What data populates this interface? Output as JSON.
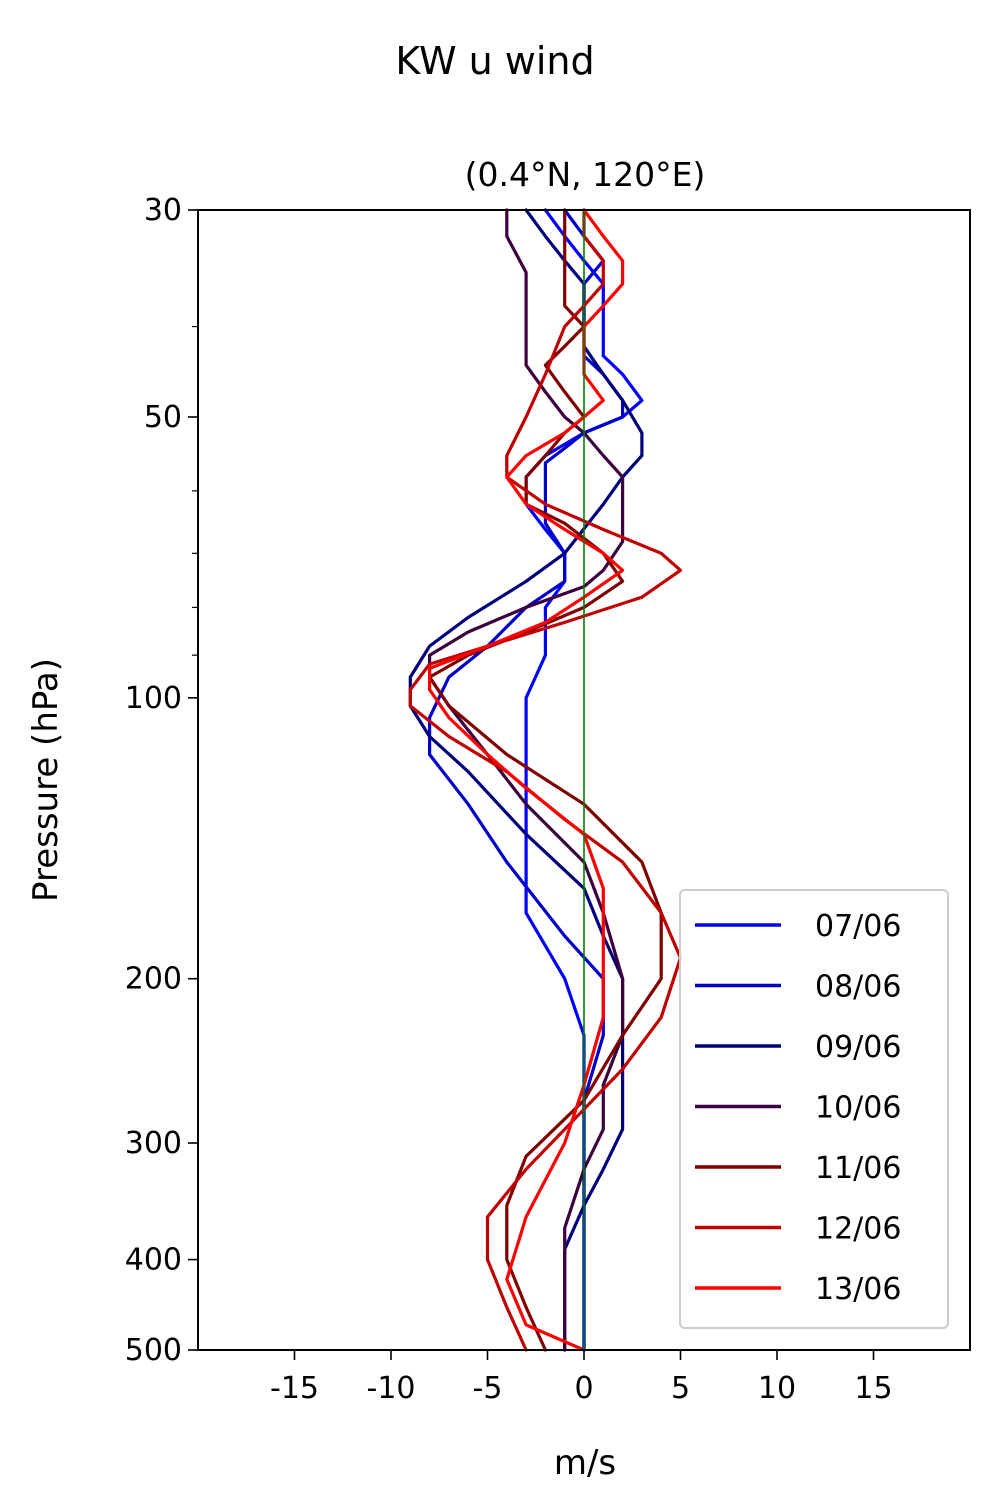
{
  "chart_data": {
    "type": "line",
    "title": "KW u wind",
    "subtitle": "(0.4°N, 120°E)",
    "xlabel": "m/s",
    "ylabel": "Pressure (hPa)",
    "xlim": [
      -20,
      20
    ],
    "ylim": [
      500,
      30
    ],
    "y_scale": "log",
    "x_ticks": [
      -15,
      -10,
      -5,
      0,
      5,
      10,
      15
    ],
    "x_tick_labels": [
      "-15",
      "-10",
      "-5",
      "0",
      "5",
      "10",
      "15"
    ],
    "y_ticks": [
      30,
      50,
      100,
      200,
      300,
      400,
      500
    ],
    "y_tick_labels": [
      "30",
      "50",
      "100",
      "200",
      "300",
      "400",
      "500"
    ],
    "y_minor_ticks": [
      40,
      60,
      70,
      80,
      90
    ],
    "grid": false,
    "legend_position": "lower-right",
    "reference_line": {
      "x": 0,
      "color": "#008000"
    },
    "series": [
      {
        "name": "07/06",
        "color": "#0000ff",
        "points": [
          [
            -2,
            30
          ],
          [
            -1,
            32
          ],
          [
            0,
            34
          ],
          [
            1,
            36
          ],
          [
            1,
            38
          ],
          [
            1,
            40
          ],
          [
            1,
            43
          ],
          [
            2,
            45
          ],
          [
            3,
            48
          ],
          [
            2,
            50
          ],
          [
            0,
            52
          ],
          [
            -2,
            55
          ],
          [
            -3,
            58
          ],
          [
            -3,
            62
          ],
          [
            -2,
            66
          ],
          [
            -1,
            70
          ],
          [
            -1,
            75
          ],
          [
            -2,
            80
          ],
          [
            -2,
            90
          ],
          [
            -3,
            100
          ],
          [
            -3,
            120
          ],
          [
            -3,
            150
          ],
          [
            -3,
            170
          ],
          [
            -1,
            200
          ],
          [
            0,
            230
          ],
          [
            0,
            270
          ],
          [
            0,
            330
          ],
          [
            0,
            400
          ],
          [
            0,
            460
          ],
          [
            0,
            500
          ]
        ]
      },
      {
        "name": "08/06",
        "color": "#0000c8",
        "points": [
          [
            -1,
            30
          ],
          [
            0,
            32
          ],
          [
            1,
            34
          ],
          [
            0,
            36
          ],
          [
            0,
            38
          ],
          [
            0,
            40
          ],
          [
            0,
            43
          ],
          [
            1,
            45
          ],
          [
            2,
            48
          ],
          [
            2,
            50
          ],
          [
            0,
            52
          ],
          [
            -1,
            54
          ],
          [
            -2,
            56
          ],
          [
            -2,
            58
          ],
          [
            -2,
            60
          ],
          [
            -2,
            65
          ],
          [
            -1,
            70
          ],
          [
            -1,
            75
          ],
          [
            -3,
            80
          ],
          [
            -5,
            88
          ],
          [
            -7,
            95
          ],
          [
            -8,
            105
          ],
          [
            -8,
            115
          ],
          [
            -6,
            130
          ],
          [
            -4,
            150
          ],
          [
            -1,
            180
          ],
          [
            1,
            200
          ],
          [
            1,
            230
          ],
          [
            0,
            270
          ],
          [
            0,
            330
          ],
          [
            0,
            400
          ],
          [
            0,
            460
          ],
          [
            0,
            500
          ]
        ]
      },
      {
        "name": "09/06",
        "color": "#00007a",
        "points": [
          [
            -3,
            30
          ],
          [
            -2,
            32
          ],
          [
            -1,
            34
          ],
          [
            0,
            36
          ],
          [
            0,
            38
          ],
          [
            0,
            40
          ],
          [
            0,
            42
          ],
          [
            1,
            45
          ],
          [
            2,
            48
          ],
          [
            3,
            52
          ],
          [
            3,
            55
          ],
          [
            2,
            58
          ],
          [
            1,
            62
          ],
          [
            -1,
            70
          ],
          [
            -3,
            75
          ],
          [
            -6,
            82
          ],
          [
            -8,
            88
          ],
          [
            -9,
            95
          ],
          [
            -9,
            102
          ],
          [
            -8,
            110
          ],
          [
            -6,
            120
          ],
          [
            -3,
            140
          ],
          [
            0,
            160
          ],
          [
            1,
            180
          ],
          [
            2,
            200
          ],
          [
            2,
            230
          ],
          [
            2,
            260
          ],
          [
            2,
            290
          ],
          [
            1,
            320
          ],
          [
            0,
            350
          ],
          [
            -1,
            390
          ],
          [
            -1,
            440
          ],
          [
            -1,
            500
          ]
        ]
      },
      {
        "name": "10/06",
        "color": "#3c0040",
        "points": [
          [
            -4,
            30
          ],
          [
            -4,
            32
          ],
          [
            -3,
            35
          ],
          [
            -3,
            38
          ],
          [
            -3,
            42
          ],
          [
            -3,
            44
          ],
          [
            -2,
            47
          ],
          [
            -1,
            50
          ],
          [
            0,
            52
          ],
          [
            1,
            55
          ],
          [
            2,
            58
          ],
          [
            2,
            63
          ],
          [
            2,
            68
          ],
          [
            1,
            73
          ],
          [
            0,
            76
          ],
          [
            -3,
            80
          ],
          [
            -6,
            85
          ],
          [
            -8,
            90
          ],
          [
            -8,
            95
          ],
          [
            -7,
            102
          ],
          [
            -5,
            115
          ],
          [
            -3,
            130
          ],
          [
            0,
            150
          ],
          [
            1,
            170
          ],
          [
            2,
            200
          ],
          [
            2,
            230
          ],
          [
            1,
            260
          ],
          [
            1,
            290
          ],
          [
            0,
            320
          ],
          [
            -1,
            370
          ],
          [
            -1,
            420
          ],
          [
            -1,
            460
          ],
          [
            -1,
            500
          ]
        ]
      },
      {
        "name": "11/06",
        "color": "#800000",
        "points": [
          [
            -1,
            30
          ],
          [
            -1,
            32
          ],
          [
            -1,
            35
          ],
          [
            -1,
            38
          ],
          [
            0,
            40
          ],
          [
            -1,
            42
          ],
          [
            -2,
            44
          ],
          [
            -1,
            47
          ],
          [
            0,
            50
          ],
          [
            -1,
            52
          ],
          [
            -2,
            55
          ],
          [
            -3,
            58
          ],
          [
            -3,
            62
          ],
          [
            -1,
            65
          ],
          [
            1,
            70
          ],
          [
            2,
            75
          ],
          [
            0,
            80
          ],
          [
            -3,
            85
          ],
          [
            -6,
            90
          ],
          [
            -8,
            95
          ],
          [
            -7,
            102
          ],
          [
            -4,
            115
          ],
          [
            0,
            130
          ],
          [
            3,
            150
          ],
          [
            4,
            170
          ],
          [
            4,
            200
          ],
          [
            2,
            230
          ],
          [
            0,
            270
          ],
          [
            -3,
            310
          ],
          [
            -4,
            350
          ],
          [
            -4,
            400
          ],
          [
            -3,
            450
          ],
          [
            -2,
            500
          ]
        ]
      },
      {
        "name": "12/06",
        "color": "#c00000",
        "points": [
          [
            0,
            30
          ],
          [
            0,
            32
          ],
          [
            1,
            34
          ],
          [
            1,
            36
          ],
          [
            0,
            38
          ],
          [
            -1,
            40
          ],
          [
            -2,
            45
          ],
          [
            -3,
            50
          ],
          [
            -4,
            55
          ],
          [
            -4,
            58
          ],
          [
            -2,
            62
          ],
          [
            1,
            66
          ],
          [
            4,
            70
          ],
          [
            5,
            73
          ],
          [
            3,
            78
          ],
          [
            -1,
            83
          ],
          [
            -5,
            88
          ],
          [
            -8,
            92
          ],
          [
            -9,
            98
          ],
          [
            -9,
            102
          ],
          [
            -7,
            110
          ],
          [
            -4,
            120
          ],
          [
            -1,
            135
          ],
          [
            2,
            150
          ],
          [
            4,
            170
          ],
          [
            5,
            190
          ],
          [
            4,
            220
          ],
          [
            2,
            250
          ],
          [
            -1,
            290
          ],
          [
            -3,
            320
          ],
          [
            -5,
            360
          ],
          [
            -5,
            400
          ],
          [
            -4,
            450
          ],
          [
            -3,
            500
          ]
        ]
      },
      {
        "name": "13/06",
        "color": "#ff0000",
        "points": [
          [
            0,
            30
          ],
          [
            1,
            32
          ],
          [
            2,
            34
          ],
          [
            2,
            36
          ],
          [
            1,
            38
          ],
          [
            0,
            40
          ],
          [
            0,
            42
          ],
          [
            0,
            45
          ],
          [
            1,
            48
          ],
          [
            0,
            50
          ],
          [
            -1,
            52
          ],
          [
            -3,
            55
          ],
          [
            -4,
            58
          ],
          [
            -3,
            62
          ],
          [
            -1,
            66
          ],
          [
            1,
            70
          ],
          [
            2,
            73
          ],
          [
            0,
            78
          ],
          [
            -2,
            83
          ],
          [
            -5,
            88
          ],
          [
            -8,
            93
          ],
          [
            -8,
            98
          ],
          [
            -7,
            105
          ],
          [
            -5,
            115
          ],
          [
            -3,
            125
          ],
          [
            0,
            140
          ],
          [
            1,
            160
          ],
          [
            1,
            190
          ],
          [
            1,
            220
          ],
          [
            0,
            260
          ],
          [
            -1,
            300
          ],
          [
            -3,
            360
          ],
          [
            -4,
            420
          ],
          [
            -3,
            470
          ],
          [
            0,
            500
          ]
        ]
      }
    ]
  }
}
